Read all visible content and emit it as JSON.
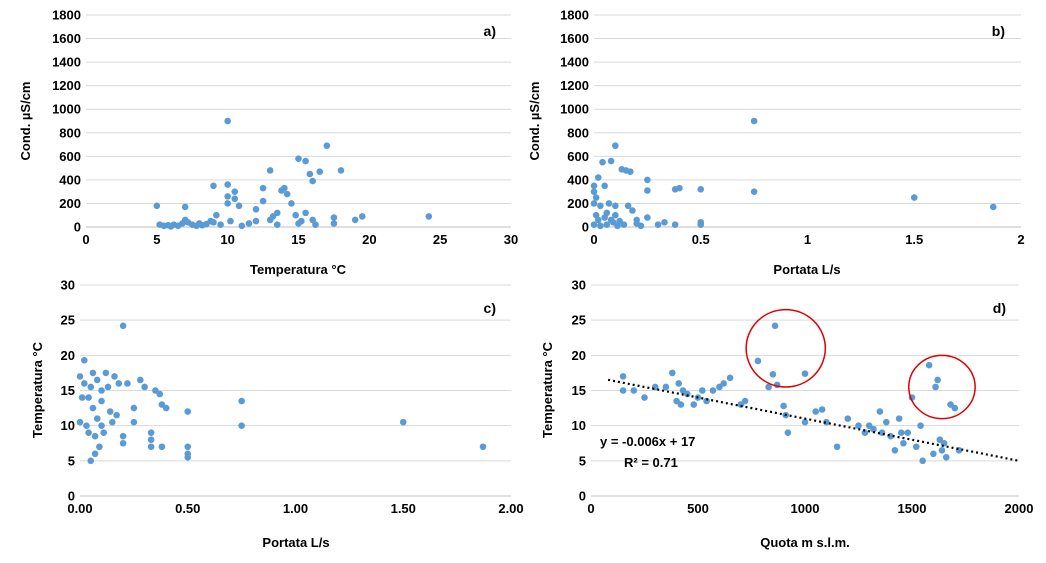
{
  "colors": {
    "point": "#5b9bd5",
    "grid": "#d9d9d9",
    "trend": "#000000",
    "circle": "#e00000"
  },
  "chart_data": [
    {
      "type": "scatter",
      "panel_label": "a)",
      "xlabel": "Temperatura °C",
      "ylabel": "Cond. µS/cm",
      "xlim": [
        0,
        30
      ],
      "ylim": [
        0,
        1800
      ],
      "xticks": [
        0,
        5,
        10,
        15,
        20,
        25,
        30
      ],
      "yticks": [
        0,
        200,
        400,
        600,
        800,
        1000,
        1200,
        1400,
        1600,
        1800
      ],
      "xtick_labels": [
        "0",
        "5",
        "10",
        "15",
        "20",
        "25",
        "30"
      ],
      "ytick_labels": [
        "0",
        "200",
        "400",
        "600",
        "800",
        "1000",
        "1200",
        "1400",
        "1600",
        "1800"
      ],
      "grid": "horizontal",
      "points": [
        [
          5.0,
          180
        ],
        [
          5.2,
          20
        ],
        [
          5.5,
          10
        ],
        [
          5.8,
          15
        ],
        [
          6.0,
          5
        ],
        [
          6.2,
          20
        ],
        [
          6.5,
          10
        ],
        [
          6.8,
          30
        ],
        [
          7.0,
          170
        ],
        [
          7.0,
          60
        ],
        [
          7.2,
          40
        ],
        [
          7.5,
          20
        ],
        [
          7.8,
          10
        ],
        [
          8.0,
          30
        ],
        [
          8.2,
          15
        ],
        [
          8.5,
          25
        ],
        [
          8.8,
          50
        ],
        [
          9.0,
          40
        ],
        [
          9.0,
          350
        ],
        [
          9.2,
          100
        ],
        [
          9.5,
          20
        ],
        [
          10.0,
          900
        ],
        [
          10.0,
          360
        ],
        [
          10.0,
          200
        ],
        [
          10.0,
          260
        ],
        [
          10.2,
          50
        ],
        [
          10.5,
          300
        ],
        [
          10.5,
          240
        ],
        [
          10.8,
          180
        ],
        [
          11.0,
          10
        ],
        [
          11.5,
          30
        ],
        [
          12.0,
          50
        ],
        [
          12.0,
          150
        ],
        [
          12.5,
          330
        ],
        [
          12.5,
          220
        ],
        [
          13.0,
          480
        ],
        [
          13.0,
          60
        ],
        [
          13.2,
          90
        ],
        [
          13.5,
          120
        ],
        [
          13.5,
          20
        ],
        [
          13.8,
          310
        ],
        [
          14.0,
          330
        ],
        [
          14.2,
          280
        ],
        [
          14.5,
          200
        ],
        [
          14.8,
          100
        ],
        [
          15.0,
          580
        ],
        [
          15.0,
          30
        ],
        [
          15.2,
          50
        ],
        [
          15.5,
          560
        ],
        [
          15.5,
          120
        ],
        [
          15.8,
          450
        ],
        [
          16.0,
          390
        ],
        [
          16.0,
          60
        ],
        [
          16.2,
          20
        ],
        [
          16.5,
          470
        ],
        [
          17.0,
          690
        ],
        [
          17.5,
          80
        ],
        [
          17.5,
          30
        ],
        [
          18.0,
          480
        ],
        [
          19.0,
          60
        ],
        [
          19.5,
          90
        ],
        [
          24.2,
          90
        ]
      ]
    },
    {
      "type": "scatter",
      "panel_label": "b)",
      "xlabel": "Portata L/s",
      "ylabel": "Cond. µS/cm",
      "xlim": [
        0,
        2
      ],
      "ylim": [
        0,
        1800
      ],
      "xticks": [
        0,
        0.5,
        1,
        1.5,
        2
      ],
      "yticks": [
        0,
        200,
        400,
        600,
        800,
        1000,
        1200,
        1400,
        1600,
        1800
      ],
      "xtick_labels": [
        "0",
        "0.5",
        "1",
        "1.5",
        "2"
      ],
      "ytick_labels": [
        "0",
        "200",
        "400",
        "600",
        "800",
        "1000",
        "1200",
        "1400",
        "1600",
        "1800"
      ],
      "grid": "horizontal",
      "points": [
        [
          0.0,
          20
        ],
        [
          0.0,
          200
        ],
        [
          0.0,
          300
        ],
        [
          0.0,
          350
        ],
        [
          0.01,
          100
        ],
        [
          0.01,
          250
        ],
        [
          0.02,
          60
        ],
        [
          0.02,
          420
        ],
        [
          0.03,
          10
        ],
        [
          0.03,
          180
        ],
        [
          0.04,
          550
        ],
        [
          0.05,
          80
        ],
        [
          0.05,
          350
        ],
        [
          0.06,
          20
        ],
        [
          0.06,
          120
        ],
        [
          0.07,
          200
        ],
        [
          0.08,
          560
        ],
        [
          0.08,
          60
        ],
        [
          0.09,
          40
        ],
        [
          0.1,
          690
        ],
        [
          0.1,
          180
        ],
        [
          0.1,
          100
        ],
        [
          0.11,
          10
        ],
        [
          0.12,
          50
        ],
        [
          0.13,
          490
        ],
        [
          0.14,
          20
        ],
        [
          0.15,
          480
        ],
        [
          0.16,
          180
        ],
        [
          0.17,
          470
        ],
        [
          0.18,
          140
        ],
        [
          0.2,
          60
        ],
        [
          0.2,
          30
        ],
        [
          0.22,
          10
        ],
        [
          0.25,
          400
        ],
        [
          0.25,
          310
        ],
        [
          0.25,
          80
        ],
        [
          0.3,
          20
        ],
        [
          0.33,
          40
        ],
        [
          0.38,
          320
        ],
        [
          0.38,
          20
        ],
        [
          0.4,
          330
        ],
        [
          0.5,
          320
        ],
        [
          0.5,
          20
        ],
        [
          0.5,
          40
        ],
        [
          0.75,
          900
        ],
        [
          0.75,
          300
        ],
        [
          1.5,
          250
        ],
        [
          1.87,
          170
        ]
      ]
    },
    {
      "type": "scatter",
      "panel_label": "c)",
      "xlabel": "Portata L/s",
      "ylabel": "Temperatura °C",
      "xlim": [
        0,
        2
      ],
      "ylim": [
        0,
        30
      ],
      "xticks": [
        0,
        0.5,
        1,
        1.5,
        2
      ],
      "yticks": [
        0,
        5,
        10,
        15,
        20,
        25,
        30
      ],
      "xtick_labels": [
        "0.00",
        "0.50",
        "1.00",
        "1.50",
        "2.00"
      ],
      "ytick_labels": [
        "0",
        "5",
        "10",
        "15",
        "20",
        "25",
        "30"
      ],
      "grid": "horizontal",
      "points": [
        [
          0.0,
          10.5
        ],
        [
          0.0,
          17.0
        ],
        [
          0.01,
          14.0
        ],
        [
          0.02,
          19.3
        ],
        [
          0.02,
          16.0
        ],
        [
          0.03,
          10.0
        ],
        [
          0.04,
          14.0
        ],
        [
          0.04,
          9.0
        ],
        [
          0.05,
          15.5
        ],
        [
          0.05,
          5.0
        ],
        [
          0.06,
          17.5
        ],
        [
          0.06,
          12.5
        ],
        [
          0.07,
          8.5
        ],
        [
          0.07,
          6.0
        ],
        [
          0.08,
          16.5
        ],
        [
          0.08,
          11.0
        ],
        [
          0.09,
          7.0
        ],
        [
          0.1,
          15.0
        ],
        [
          0.1,
          13.5
        ],
        [
          0.1,
          10.0
        ],
        [
          0.11,
          9.0
        ],
        [
          0.12,
          17.5
        ],
        [
          0.13,
          15.5
        ],
        [
          0.14,
          12.0
        ],
        [
          0.15,
          10.5
        ],
        [
          0.16,
          17.0
        ],
        [
          0.17,
          11.5
        ],
        [
          0.18,
          16.0
        ],
        [
          0.2,
          24.2
        ],
        [
          0.2,
          8.5
        ],
        [
          0.2,
          7.5
        ],
        [
          0.22,
          16.0
        ],
        [
          0.25,
          12.5
        ],
        [
          0.25,
          10.5
        ],
        [
          0.28,
          16.5
        ],
        [
          0.3,
          15.5
        ],
        [
          0.33,
          9.0
        ],
        [
          0.33,
          8.0
        ],
        [
          0.33,
          7.0
        ],
        [
          0.35,
          15.0
        ],
        [
          0.37,
          14.5
        ],
        [
          0.38,
          13.0
        ],
        [
          0.38,
          7.0
        ],
        [
          0.4,
          12.5
        ],
        [
          0.5,
          12.0
        ],
        [
          0.5,
          7.0
        ],
        [
          0.5,
          6.0
        ],
        [
          0.5,
          5.5
        ],
        [
          0.75,
          13.5
        ],
        [
          0.75,
          10.0
        ],
        [
          1.5,
          10.5
        ],
        [
          1.87,
          7.0
        ]
      ]
    },
    {
      "type": "scatter",
      "panel_label": "d)",
      "xlabel": "Quota m s.l.m.",
      "ylabel": "Temperatura °C",
      "xlim": [
        0,
        2000
      ],
      "ylim": [
        0,
        30
      ],
      "xticks": [
        0,
        500,
        1000,
        1500,
        2000
      ],
      "yticks": [
        0,
        5,
        10,
        15,
        20,
        25,
        30
      ],
      "xtick_labels": [
        "0",
        "500",
        "1000",
        "1500",
        "2000"
      ],
      "ytick_labels": [
        "0",
        "5",
        "10",
        "15",
        "20",
        "25",
        "30"
      ],
      "grid": "horizontal",
      "trendline": {
        "slope": -0.006,
        "intercept": 17,
        "x_range": [
          80,
          2000
        ]
      },
      "equation": "y = -0.006x + 17",
      "r_squared": "R² = 0.71",
      "highlight_circles": [
        {
          "cx": 910,
          "cy": 21,
          "rx": 185,
          "ry": 5.5
        },
        {
          "cx": 1640,
          "cy": 15.5,
          "rx": 155,
          "ry": 4.5
        }
      ],
      "points": [
        [
          150,
          17.0
        ],
        [
          150,
          15.0
        ],
        [
          200,
          15.0
        ],
        [
          250,
          14.0
        ],
        [
          300,
          15.5
        ],
        [
          350,
          15.5
        ],
        [
          380,
          17.5
        ],
        [
          400,
          13.5
        ],
        [
          410,
          16.0
        ],
        [
          420,
          13.0
        ],
        [
          430,
          15.0
        ],
        [
          450,
          14.5
        ],
        [
          480,
          13.0
        ],
        [
          500,
          14.0
        ],
        [
          520,
          15.0
        ],
        [
          540,
          13.5
        ],
        [
          570,
          15.0
        ],
        [
          600,
          15.5
        ],
        [
          620,
          16.0
        ],
        [
          650,
          16.8
        ],
        [
          700,
          13.0
        ],
        [
          720,
          13.5
        ],
        [
          780,
          19.2
        ],
        [
          830,
          15.5
        ],
        [
          850,
          17.3
        ],
        [
          860,
          24.2
        ],
        [
          870,
          15.8
        ],
        [
          900,
          12.8
        ],
        [
          910,
          11.5
        ],
        [
          920,
          9.0
        ],
        [
          1000,
          10.5
        ],
        [
          1000,
          17.4
        ],
        [
          1050,
          12.0
        ],
        [
          1080,
          12.3
        ],
        [
          1100,
          10.5
        ],
        [
          1150,
          7.0
        ],
        [
          1200,
          11.0
        ],
        [
          1250,
          10.0
        ],
        [
          1280,
          9.0
        ],
        [
          1300,
          10.0
        ],
        [
          1320,
          9.5
        ],
        [
          1350,
          12.0
        ],
        [
          1360,
          9.0
        ],
        [
          1380,
          10.5
        ],
        [
          1400,
          8.5
        ],
        [
          1420,
          6.5
        ],
        [
          1440,
          11.0
        ],
        [
          1450,
          9.0
        ],
        [
          1460,
          7.5
        ],
        [
          1480,
          9.0
        ],
        [
          1500,
          14.0
        ],
        [
          1520,
          7.0
        ],
        [
          1540,
          10.0
        ],
        [
          1550,
          5.0
        ],
        [
          1580,
          18.6
        ],
        [
          1600,
          6.0
        ],
        [
          1610,
          15.5
        ],
        [
          1620,
          16.5
        ],
        [
          1630,
          8.0
        ],
        [
          1640,
          6.5
        ],
        [
          1650,
          7.5
        ],
        [
          1660,
          5.5
        ],
        [
          1680,
          13.0
        ],
        [
          1700,
          12.5
        ],
        [
          1720,
          6.5
        ]
      ]
    }
  ]
}
